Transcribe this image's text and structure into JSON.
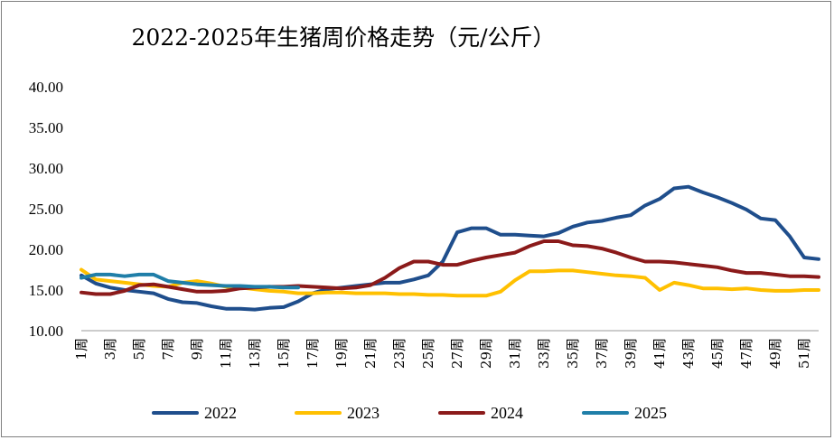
{
  "chart_data": {
    "type": "line",
    "title": "2022-2025年生猪周价格走势（元/公斤）",
    "ylim": [
      10,
      40
    ],
    "yticks": [
      "10.00",
      "15.00",
      "20.00",
      "25.00",
      "30.00",
      "35.00",
      "40.00"
    ],
    "xticks": [
      {
        "week": 1,
        "label": "1周"
      },
      {
        "week": 3,
        "label": "3周"
      },
      {
        "week": 5,
        "label": "5周"
      },
      {
        "week": 7,
        "label": "7周"
      },
      {
        "week": 9,
        "label": "9周"
      },
      {
        "week": 11,
        "label": "11周"
      },
      {
        "week": 13,
        "label": "13周"
      },
      {
        "week": 15,
        "label": "15周"
      },
      {
        "week": 17,
        "label": "17周"
      },
      {
        "week": 19,
        "label": "19周"
      },
      {
        "week": 21,
        "label": "21周"
      },
      {
        "week": 23,
        "label": "23周"
      },
      {
        "week": 25,
        "label": "25周"
      },
      {
        "week": 27,
        "label": "27周"
      },
      {
        "week": 29,
        "label": "29周"
      },
      {
        "week": 31,
        "label": "31周"
      },
      {
        "week": 33,
        "label": "33周"
      },
      {
        "week": 35,
        "label": "35周"
      },
      {
        "week": 37,
        "label": "37周"
      },
      {
        "week": 39,
        "label": "39周"
      },
      {
        "week": 41,
        "label": "41周"
      },
      {
        "week": 43,
        "label": "43周"
      },
      {
        "week": 45,
        "label": "45周"
      },
      {
        "week": 47,
        "label": "47周"
      },
      {
        "week": 49,
        "label": "49周"
      },
      {
        "week": 51,
        "label": "51周"
      }
    ],
    "x_range": [
      1,
      52
    ],
    "grid": false,
    "legend": "bottom",
    "series": [
      {
        "name": "2022",
        "color": "#1f4e8c",
        "values": [
          16.8,
          15.8,
          15.3,
          15.0,
          14.8,
          14.6,
          13.9,
          13.5,
          13.4,
          13.0,
          12.7,
          12.7,
          12.6,
          12.8,
          12.9,
          13.6,
          14.6,
          15.1,
          15.3,
          15.5,
          15.7,
          15.9,
          15.9,
          16.3,
          16.8,
          18.5,
          22.1,
          22.6,
          22.6,
          21.8,
          21.8,
          21.7,
          21.6,
          22.0,
          22.8,
          23.3,
          23.5,
          23.9,
          24.2,
          25.4,
          26.2,
          27.5,
          27.7,
          27.0,
          26.4,
          25.7,
          24.9,
          23.8,
          23.6,
          21.6,
          19.0,
          18.8
        ]
      },
      {
        "name": "2023",
        "color": "#ffc000",
        "values": [
          17.5,
          16.3,
          16.1,
          15.9,
          15.7,
          15.5,
          15.4,
          15.9,
          16.1,
          15.8,
          15.4,
          15.3,
          15.1,
          14.9,
          14.8,
          14.6,
          14.6,
          14.7,
          14.7,
          14.6,
          14.6,
          14.6,
          14.5,
          14.5,
          14.4,
          14.4,
          14.3,
          14.3,
          14.3,
          14.8,
          16.2,
          17.3,
          17.3,
          17.4,
          17.4,
          17.2,
          17.0,
          16.8,
          16.7,
          16.5,
          15.0,
          15.9,
          15.6,
          15.2,
          15.2,
          15.1,
          15.2,
          15.0,
          14.9,
          14.9,
          15.0,
          15.0
        ]
      },
      {
        "name": "2024",
        "color": "#8b1a1a",
        "values": [
          14.7,
          14.5,
          14.5,
          14.9,
          15.6,
          15.7,
          15.4,
          15.1,
          14.8,
          14.8,
          14.9,
          15.2,
          15.3,
          15.4,
          15.4,
          15.5,
          15.4,
          15.3,
          15.2,
          15.3,
          15.6,
          16.5,
          17.7,
          18.5,
          18.5,
          18.1,
          18.1,
          18.6,
          19.0,
          19.3,
          19.6,
          20.4,
          21.0,
          21.0,
          20.5,
          20.4,
          20.1,
          19.6,
          19.0,
          18.5,
          18.5,
          18.4,
          18.2,
          18.0,
          17.8,
          17.4,
          17.1,
          17.1,
          16.9,
          16.7,
          16.7,
          16.6
        ]
      },
      {
        "name": "2025",
        "color": "#1f7ea8",
        "values": [
          16.5,
          16.9,
          16.9,
          16.7,
          16.9,
          16.9,
          16.1,
          15.9,
          15.7,
          15.6,
          15.5,
          15.5,
          15.4,
          15.4,
          15.3,
          15.3
        ]
      }
    ]
  }
}
